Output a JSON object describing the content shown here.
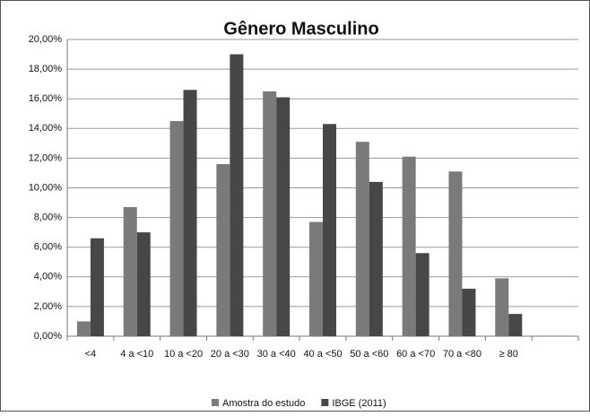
{
  "chart_data": {
    "type": "bar",
    "title": "Gênero Masculino",
    "categories": [
      "<4",
      "4 a <10",
      "10 a <20",
      "20 a <30",
      "30 a <40",
      "40 a <50",
      "50 a <60",
      "60 a <70",
      "70 a <80",
      "≥ 80",
      null
    ],
    "series": [
      {
        "name": "Amostra do estudo",
        "color": "#7a7a7a",
        "values": [
          1.0,
          8.7,
          14.5,
          11.6,
          16.5,
          7.7,
          13.1,
          12.1,
          11.1,
          3.9,
          null
        ]
      },
      {
        "name": "IBGE (2011)",
        "color": "#474747",
        "values": [
          6.6,
          7.0,
          16.6,
          19.0,
          16.1,
          14.3,
          10.4,
          5.6,
          3.2,
          1.5,
          null
        ]
      }
    ],
    "ylim": [
      0,
      20
    ],
    "yticks": [
      {
        "value": 0,
        "label": "0,00%"
      },
      {
        "value": 2,
        "label": "2,00%"
      },
      {
        "value": 4,
        "label": "4,00%"
      },
      {
        "value": 6,
        "label": "6,00%"
      },
      {
        "value": 8,
        "label": "8,00%"
      },
      {
        "value": 10,
        "label": "10,00%"
      },
      {
        "value": 12,
        "label": "12,00%"
      },
      {
        "value": 14,
        "label": "14,00%"
      },
      {
        "value": 16,
        "label": "16,00%"
      },
      {
        "value": 18,
        "label": "18,00%"
      },
      {
        "value": 20,
        "label": "20,00%"
      }
    ],
    "grid": true,
    "legend": "bottom"
  }
}
